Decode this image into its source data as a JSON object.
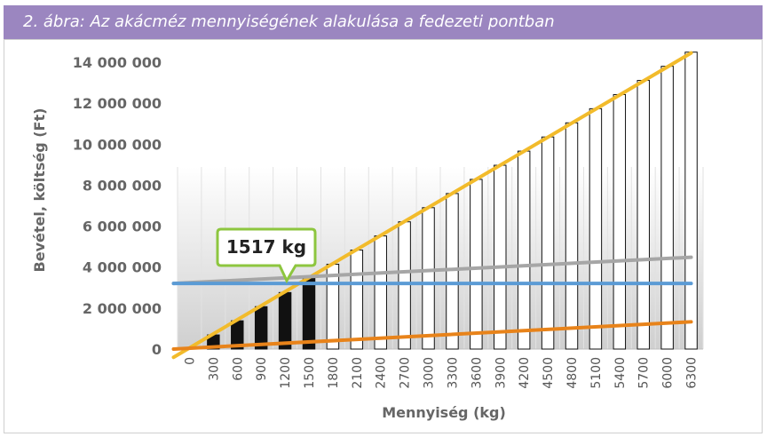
{
  "title": "2. ábra: Az akácméz mennyiségének alakulása a fedezeti pontban",
  "chart_data": {
    "type": "bar",
    "xlabel": "Mennyiség (kg)",
    "ylabel": "Bevétel, költség (Ft)",
    "ylim": [
      0,
      14000000
    ],
    "yticks": [
      "0",
      "2 000 000",
      "4 000 000",
      "6 000 000",
      "8 000 000",
      "10 000 000",
      "12 000 000",
      "14 000 000"
    ],
    "ytick_values": [
      0,
      2000000,
      4000000,
      6000000,
      8000000,
      10000000,
      12000000,
      14000000
    ],
    "categories": [
      "0",
      "300",
      "600",
      "900",
      "1200",
      "1500",
      "1800",
      "2100",
      "2400",
      "2700",
      "3000",
      "3300",
      "3600",
      "3900",
      "4200",
      "4500",
      "4800",
      "5100",
      "5400",
      "5700",
      "6000",
      "6300"
    ],
    "bars": {
      "values": [
        0,
        690000,
        1380000,
        2070000,
        2760000,
        3450000,
        4140000,
        4830000,
        5520000,
        6210000,
        6900000,
        7590000,
        8280000,
        8970000,
        9660000,
        10350000,
        11040000,
        11730000,
        12420000,
        13110000,
        13800000,
        14490000
      ],
      "loss_color": "#111111",
      "profit_color": "#ffffff"
    },
    "lines": [
      {
        "x": [
          -200,
          6300
        ],
        "y": [
          -400000,
          14450000
        ],
        "color": "#f2bb2b"
      },
      {
        "x": [
          -200,
          6300
        ],
        "y": [
          3200000,
          4480000
        ],
        "color": "#a6a6a6"
      },
      {
        "x": [
          -200,
          6300
        ],
        "y": [
          3200000,
          3200000
        ],
        "color": "#5b9bd5"
      },
      {
        "x": [
          -200,
          6300
        ],
        "y": [
          0,
          1330000
        ],
        "color": "#e8831a"
      }
    ],
    "annotation": {
      "label": "1517 kg",
      "x": 1517,
      "y": 3200000
    }
  }
}
